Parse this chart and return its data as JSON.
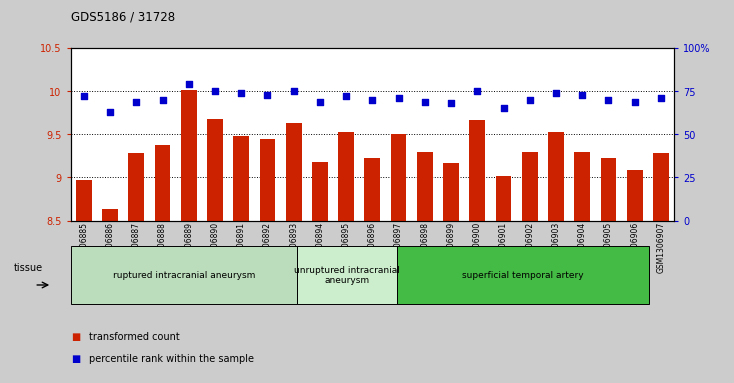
{
  "title": "GDS5186 / 31728",
  "samples": [
    "GSM1306885",
    "GSM1306886",
    "GSM1306887",
    "GSM1306888",
    "GSM1306889",
    "GSM1306890",
    "GSM1306891",
    "GSM1306892",
    "GSM1306893",
    "GSM1306894",
    "GSM1306895",
    "GSM1306896",
    "GSM1306897",
    "GSM1306898",
    "GSM1306899",
    "GSM1306900",
    "GSM1306901",
    "GSM1306902",
    "GSM1306903",
    "GSM1306904",
    "GSM1306905",
    "GSM1306906",
    "GSM1306907"
  ],
  "bar_values": [
    8.97,
    8.63,
    9.28,
    9.38,
    10.01,
    9.68,
    9.48,
    9.45,
    9.63,
    9.18,
    9.53,
    9.22,
    9.5,
    9.3,
    9.17,
    9.67,
    9.02,
    9.29,
    9.53,
    9.3,
    9.22,
    9.09,
    9.28
  ],
  "scatter_values": [
    72,
    63,
    69,
    70,
    79,
    75,
    74,
    73,
    75,
    69,
    72,
    70,
    71,
    69,
    68,
    75,
    65,
    70,
    74,
    73,
    70,
    69,
    71
  ],
  "ylim_left": [
    8.5,
    10.5
  ],
  "ylim_right": [
    0,
    100
  ],
  "yticks_left": [
    8.5,
    9.0,
    9.5,
    10.0,
    10.5
  ],
  "ytick_labels_left": [
    "8.5",
    "9",
    "9.5",
    "10",
    "10.5"
  ],
  "yticks_right": [
    0,
    25,
    50,
    75,
    100
  ],
  "ytick_labels_right": [
    "0",
    "25",
    "50",
    "75",
    "100%"
  ],
  "bar_color": "#cc2200",
  "scatter_color": "#0000cc",
  "bar_bottom": 8.5,
  "groups": [
    {
      "label": "ruptured intracranial aneurysm",
      "start": 0,
      "end": 9,
      "color": "#bbddbb"
    },
    {
      "label": "unruptured intracranial\naneurysm",
      "start": 9,
      "end": 13,
      "color": "#cceecc"
    },
    {
      "label": "superficial temporal artery",
      "start": 13,
      "end": 23,
      "color": "#44bb44"
    }
  ],
  "tissue_label": "tissue",
  "legend_bar_label": "transformed count",
  "legend_scatter_label": "percentile rank within the sample",
  "background_color": "#cccccc",
  "plot_bg_color": "#ffffff",
  "fig_width": 7.14,
  "fig_height": 3.63
}
